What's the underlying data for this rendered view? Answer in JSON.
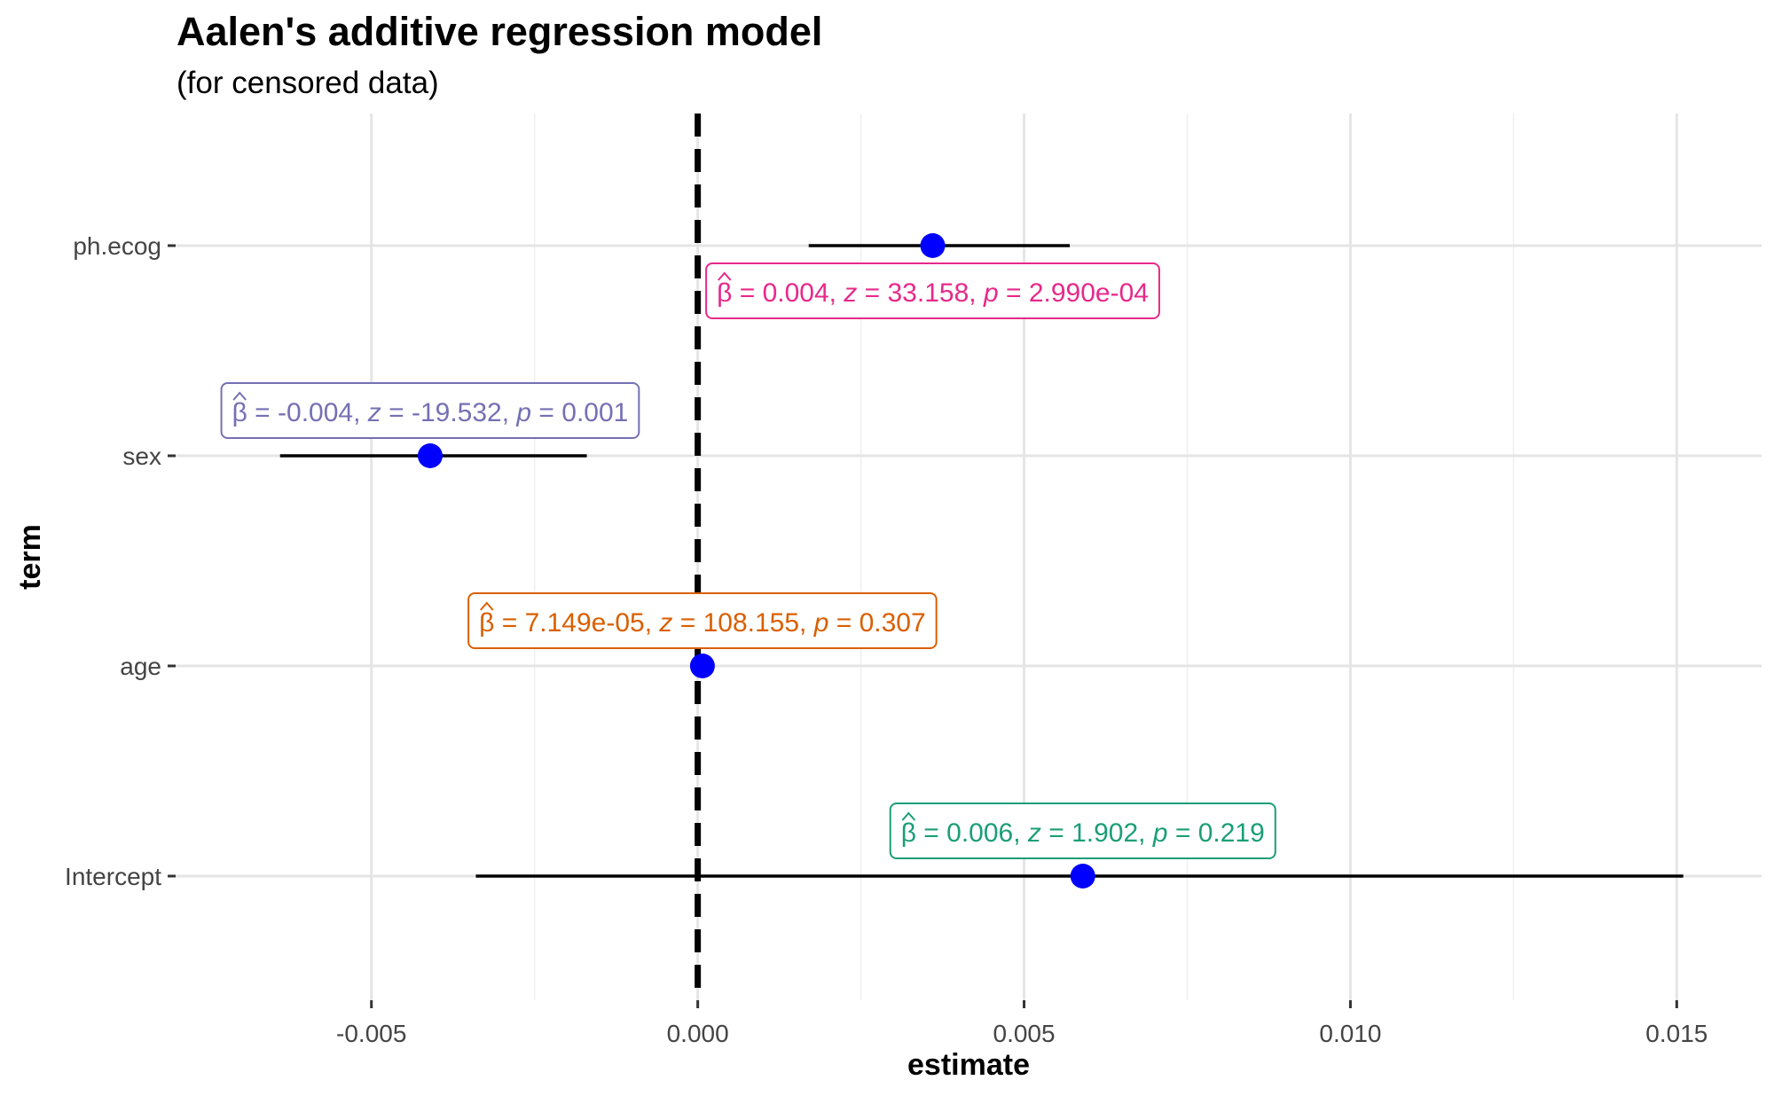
{
  "chart_data": {
    "type": "scatter",
    "title": "Aalen's additive regression model",
    "subtitle": "(for censored data)",
    "xlabel": "estimate",
    "ylabel": "term",
    "xlim": [
      -0.008,
      0.0163
    ],
    "x_ticks": [
      -0.005,
      0.0,
      0.005,
      0.01,
      0.015
    ],
    "x_tick_labels": [
      "-0.005",
      "0.000",
      "0.005",
      "0.010",
      "0.015"
    ],
    "categories": [
      "ph.ecog",
      "sex",
      "age",
      "Intercept"
    ],
    "reference_line": {
      "x": 0,
      "style": "dashed"
    },
    "grid": true,
    "point_color": "#0000ff",
    "terms": [
      {
        "term": "ph.ecog",
        "estimate": 0.0036,
        "conf_low": 0.0017,
        "conf_high": 0.0057,
        "label": {
          "beta": "= 0.004, ",
          "z": "= 33.158, ",
          "p": "= 2.990e-04",
          "color": "#e7298a",
          "position": "below"
        }
      },
      {
        "term": "sex",
        "estimate": -0.0041,
        "conf_low": -0.0064,
        "conf_high": -0.0017,
        "label": {
          "beta": "= -0.004, ",
          "z": "= -19.532, ",
          "p": "= 0.001",
          "color": "#7570b3",
          "position": "above"
        }
      },
      {
        "term": "age",
        "estimate": 7.149e-05,
        "conf_low": 0.0,
        "conf_high": 0.00014,
        "label": {
          "beta": "= 7.149e-05, ",
          "z": "= 108.155, ",
          "p": "= 0.307",
          "color": "#d95f02",
          "position": "above"
        }
      },
      {
        "term": "Intercept",
        "estimate": 0.0059,
        "conf_low": -0.0034,
        "conf_high": 0.0151,
        "label": {
          "beta": "= 0.006, ",
          "z": "= 1.902, ",
          "p": "= 0.219",
          "color": "#1b9e77",
          "position": "above"
        }
      }
    ]
  }
}
